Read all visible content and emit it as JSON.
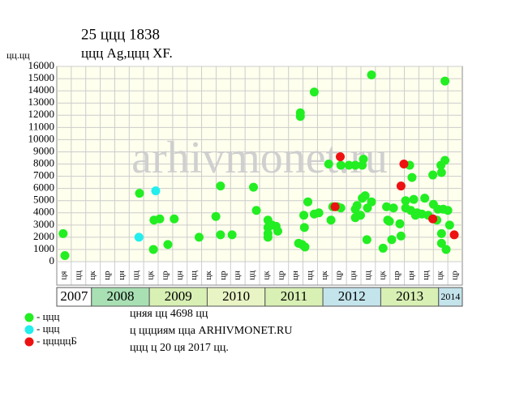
{
  "chart_data": {
    "type": "scatter",
    "title": "25 ццц 1838",
    "subtitle": "ццц Ag,ццц XF.",
    "ylabel": "цц.цц",
    "watermark": "arhivmonet.ru",
    "xlim": [
      2007.4,
      2014.41
    ],
    "ylim": [
      0,
      16000
    ],
    "yticks": [
      0,
      1000,
      2000,
      3000,
      4000,
      5000,
      6000,
      7000,
      8000,
      9000,
      10000,
      11000,
      12000,
      13000,
      14000,
      15000,
      16000
    ],
    "grid": true,
    "x_sublabels": [
      "ця",
      "цц",
      "цк",
      "цр",
      "цн",
      "цц",
      "цк",
      "цр",
      "цн",
      "цц",
      "цк",
      "цр",
      "цн",
      "цц",
      "цк",
      "цр",
      "цн",
      "цц",
      "цк",
      "цр",
      "цн",
      "цц",
      "цк",
      "цр",
      "цн",
      "цц",
      "цк",
      "цр"
    ],
    "years": [
      2007,
      2008,
      2009,
      2010,
      2011,
      2012,
      2013,
      2014
    ],
    "year_colors": [
      "#ffffff",
      "#a8e0b4",
      "#d8f0b4",
      "#e8f4c4",
      "#d8f0b4",
      "#c4e4ec",
      "#d8f0b4",
      "#c4e4ec"
    ],
    "series": [
      {
        "name": "- ццц",
        "color": "#22ee22",
        "x": [
          2007.51,
          2007.54,
          2008.83,
          2009.07,
          2009.08,
          2009.18,
          2009.32,
          2009.43,
          2009.86,
          2010.15,
          2010.23,
          2010.23,
          2010.43,
          2010.8,
          2010.85,
          2011.05,
          2011.05,
          2011.05,
          2011.05,
          2011.12,
          2011.19,
          2011.22,
          2011.58,
          2011.61,
          2011.61,
          2011.64,
          2011.67,
          2011.68,
          2011.69,
          2011.74,
          2011.85,
          2011.85,
          2011.93,
          2012.1,
          2012.14,
          2012.17,
          2012.25,
          2012.31,
          2012.31,
          2012.45,
          2012.56,
          2012.59,
          2012.56,
          2012.56,
          2012.65,
          2012.68,
          2012.68,
          2012.7,
          2012.73,
          2012.76,
          2012.77,
          2012.84,
          2012.84,
          2013.04,
          2013.1,
          2013.12,
          2013.15,
          2013.19,
          2013.22,
          2013.33,
          2013.35,
          2013.43,
          2013.43,
          2013.5,
          2013.52,
          2013.54,
          2013.57,
          2013.6,
          2013.63,
          2013.71,
          2013.76,
          2013.82,
          2013.9,
          2013.91,
          2013.97,
          2013.99,
          2014.04,
          2014.05,
          2014.05,
          2014.05,
          2014.08,
          2014.11,
          2014.11,
          2014.13,
          2014.16,
          2014.19
        ],
        "values": [
          2300,
          500,
          5600,
          1000,
          3400,
          3500,
          1400,
          3500,
          2000,
          3700,
          6200,
          2200,
          2200,
          6100,
          4200,
          3400,
          2800,
          2300,
          2000,
          3000,
          2900,
          2500,
          1500,
          12200,
          11900,
          1400,
          3800,
          2800,
          1200,
          4900,
          13900,
          3900,
          4000,
          8000,
          3400,
          4500,
          4500,
          4400,
          7900,
          7900,
          7900,
          4600,
          4300,
          3600,
          3800,
          5200,
          7900,
          8400,
          5400,
          1800,
          4400,
          15300,
          4900,
          1100,
          4500,
          3400,
          3300,
          1800,
          4400,
          3100,
          2100,
          5000,
          4400,
          7900,
          4200,
          6900,
          5100,
          3800,
          4000,
          3900,
          5200,
          3800,
          7100,
          4700,
          3400,
          4300,
          7900,
          1500,
          2300,
          7300,
          4300,
          8300,
          14800,
          1000,
          4200,
          3000
        ]
      },
      {
        "name": "- ццц",
        "color": "#22eeee",
        "x": [
          2008.82,
          2009.11
        ],
        "values": [
          2000,
          5800
        ]
      },
      {
        "name": "- цццццБ",
        "color": "#ee1111",
        "x": [
          2012.3,
          2012.21,
          2013.35,
          2013.4,
          2013.9,
          2014.27
        ],
        "values": [
          8600,
          4500,
          6200,
          8000,
          3500,
          2200
        ]
      }
    ],
    "notes": [
      "цняя цц 4698 цц",
      "ц ццциям цца ARHIVMONET.RU",
      "ццц ц 20 ця 2017 цц."
    ]
  }
}
